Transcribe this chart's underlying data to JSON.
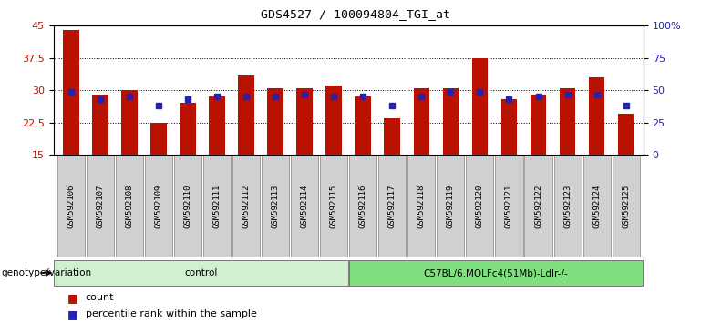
{
  "title": "GDS4527 / 100094804_TGI_at",
  "samples": [
    "GSM592106",
    "GSM592107",
    "GSM592108",
    "GSM592109",
    "GSM592110",
    "GSM592111",
    "GSM592112",
    "GSM592113",
    "GSM592114",
    "GSM592115",
    "GSM592116",
    "GSM592117",
    "GSM592118",
    "GSM592119",
    "GSM592120",
    "GSM592121",
    "GSM592122",
    "GSM592123",
    "GSM592124",
    "GSM592125"
  ],
  "counts": [
    44.0,
    29.0,
    30.0,
    22.5,
    27.0,
    28.5,
    33.5,
    30.5,
    30.5,
    31.0,
    28.5,
    23.5,
    30.5,
    30.5,
    37.5,
    28.0,
    29.0,
    30.5,
    33.0,
    24.5
  ],
  "percentile_ranks": [
    29.5,
    28.0,
    28.5,
    26.5,
    28.0,
    28.5,
    28.5,
    28.5,
    29.0,
    28.5,
    28.5,
    26.5,
    28.5,
    29.5,
    29.5,
    28.0,
    28.5,
    29.0,
    29.0,
    26.5
  ],
  "groups": [
    {
      "label": "control",
      "start": 0,
      "end": 10,
      "color": "#d0f0d0"
    },
    {
      "label": "C57BL/6.MOLFc4(51Mb)-Ldlr-/-",
      "start": 10,
      "end": 20,
      "color": "#80e080"
    }
  ],
  "ylim_left": [
    15,
    45
  ],
  "ylim_right": [
    0,
    100
  ],
  "yticks_left": [
    15,
    22.5,
    30,
    37.5,
    45
  ],
  "yticks_right": [
    0,
    25,
    50,
    75,
    100
  ],
  "yticklabels_right": [
    "0",
    "25",
    "50",
    "75",
    "100%"
  ],
  "bar_color": "#bb1100",
  "dot_color": "#2222bb",
  "bar_width": 0.55,
  "grid_color": "black",
  "background_color": "#ffffff",
  "plot_bg_color": "#ffffff",
  "legend_count_label": "count",
  "legend_percentile_label": "percentile rank within the sample",
  "xlabel_group": "genotype/variation",
  "tick_bg_color": "#d0d0d0"
}
